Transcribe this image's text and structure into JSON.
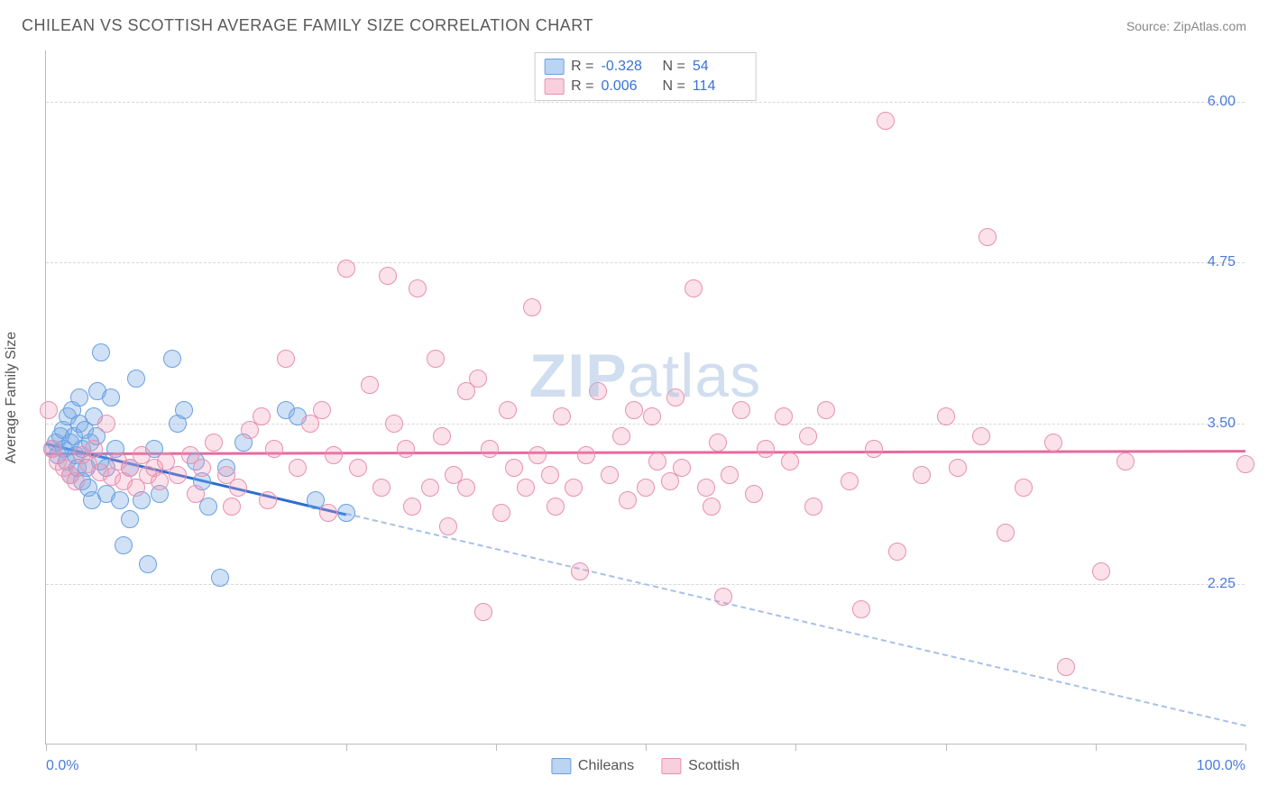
{
  "header": {
    "title": "CHILEAN VS SCOTTISH AVERAGE FAMILY SIZE CORRELATION CHART",
    "source": "Source: ZipAtlas.com"
  },
  "watermark": {
    "zip": "ZIP",
    "atlas": "atlas"
  },
  "chart": {
    "type": "scatter",
    "y_axis_title": "Average Family Size",
    "xlim": [
      0,
      100
    ],
    "ylim": [
      1.0,
      6.4
    ],
    "y_ticks": [
      2.25,
      3.5,
      4.75,
      6.0
    ],
    "y_tick_labels": [
      "2.25",
      "3.50",
      "4.75",
      "6.00"
    ],
    "x_ticks": [
      0,
      12.5,
      25,
      37.5,
      50,
      62.5,
      75,
      87.5,
      100
    ],
    "x_label_min": "0.0%",
    "x_label_max": "100.0%",
    "grid_color": "#d8d8d8",
    "background_color": "#ffffff",
    "axis_color": "#bbbbbb",
    "tick_label_color": "#4a7bd8",
    "marker_radius": 10,
    "series": [
      {
        "name": "Chileans",
        "color_fill": "rgba(120,170,230,0.35)",
        "color_stroke": "#6aa0e0",
        "trend_color": "#2b6cd4",
        "trend_dash_color": "#a8c0e8",
        "trend": {
          "x1": 0,
          "y1": 3.35,
          "x2_solid": 25,
          "y2_solid": 2.8,
          "x2_dash": 100,
          "y2_dash": 1.15
        },
        "R": "-0.328",
        "N": "54",
        "points": [
          [
            0.5,
            3.3
          ],
          [
            0.8,
            3.35
          ],
          [
            1.0,
            3.25
          ],
          [
            1.2,
            3.4
          ],
          [
            1.4,
            3.45
          ],
          [
            1.5,
            3.3
          ],
          [
            1.7,
            3.2
          ],
          [
            1.8,
            3.55
          ],
          [
            2.0,
            3.35
          ],
          [
            2.0,
            3.1
          ],
          [
            2.2,
            3.6
          ],
          [
            2.3,
            3.4
          ],
          [
            2.5,
            3.25
          ],
          [
            2.6,
            3.15
          ],
          [
            2.8,
            3.5
          ],
          [
            2.8,
            3.7
          ],
          [
            3.0,
            3.3
          ],
          [
            3.0,
            3.05
          ],
          [
            3.2,
            3.45
          ],
          [
            3.4,
            3.15
          ],
          [
            3.5,
            3.0
          ],
          [
            3.7,
            3.35
          ],
          [
            3.8,
            2.9
          ],
          [
            4.0,
            3.55
          ],
          [
            4.2,
            3.4
          ],
          [
            4.3,
            3.75
          ],
          [
            4.5,
            3.2
          ],
          [
            4.6,
            4.05
          ],
          [
            5.0,
            3.15
          ],
          [
            5.0,
            2.95
          ],
          [
            5.4,
            3.7
          ],
          [
            5.8,
            3.3
          ],
          [
            6.2,
            2.9
          ],
          [
            6.5,
            2.55
          ],
          [
            7.0,
            3.15
          ],
          [
            7.0,
            2.75
          ],
          [
            7.5,
            3.85
          ],
          [
            8.0,
            2.9
          ],
          [
            8.5,
            2.4
          ],
          [
            9.0,
            3.3
          ],
          [
            9.5,
            2.95
          ],
          [
            10.5,
            4.0
          ],
          [
            11.0,
            3.5
          ],
          [
            11.5,
            3.6
          ],
          [
            12.5,
            3.2
          ],
          [
            13.0,
            3.05
          ],
          [
            13.5,
            2.85
          ],
          [
            14.5,
            2.3
          ],
          [
            15.0,
            3.15
          ],
          [
            16.5,
            3.35
          ],
          [
            20.0,
            3.6
          ],
          [
            21.0,
            3.55
          ],
          [
            22.5,
            2.9
          ],
          [
            25.0,
            2.8
          ]
        ]
      },
      {
        "name": "Scottish",
        "color_fill": "rgba(240,150,180,0.28)",
        "color_stroke": "#e890b0",
        "trend_color": "#e76aa0",
        "trend": {
          "x1": 0,
          "y1": 3.27,
          "x2_solid": 100,
          "y2_solid": 3.29
        },
        "R": "0.006",
        "N": "114",
        "points": [
          [
            0.2,
            3.6
          ],
          [
            0.5,
            3.3
          ],
          [
            1.0,
            3.2
          ],
          [
            1.5,
            3.15
          ],
          [
            2.0,
            3.1
          ],
          [
            2.5,
            3.05
          ],
          [
            3.0,
            3.25
          ],
          [
            3.5,
            3.18
          ],
          [
            4.0,
            3.3
          ],
          [
            4.5,
            3.12
          ],
          [
            5.0,
            3.5
          ],
          [
            5.5,
            3.08
          ],
          [
            6.0,
            3.2
          ],
          [
            6.5,
            3.05
          ],
          [
            7.0,
            3.15
          ],
          [
            7.5,
            3.0
          ],
          [
            8.0,
            3.25
          ],
          [
            8.5,
            3.1
          ],
          [
            9.0,
            3.15
          ],
          [
            9.5,
            3.05
          ],
          [
            10.0,
            3.2
          ],
          [
            11.0,
            3.1
          ],
          [
            12.0,
            3.25
          ],
          [
            12.5,
            2.95
          ],
          [
            13.0,
            3.15
          ],
          [
            14.0,
            3.35
          ],
          [
            15.0,
            3.1
          ],
          [
            15.5,
            2.85
          ],
          [
            16.0,
            3.0
          ],
          [
            17.0,
            3.45
          ],
          [
            18.0,
            3.55
          ],
          [
            18.5,
            2.9
          ],
          [
            19.0,
            3.3
          ],
          [
            20.0,
            4.0
          ],
          [
            21.0,
            3.15
          ],
          [
            22.0,
            3.5
          ],
          [
            23.0,
            3.6
          ],
          [
            23.5,
            2.8
          ],
          [
            24.0,
            3.25
          ],
          [
            25.0,
            4.7
          ],
          [
            26.0,
            3.15
          ],
          [
            27.0,
            3.8
          ],
          [
            28.0,
            3.0
          ],
          [
            28.5,
            4.65
          ],
          [
            29.0,
            3.5
          ],
          [
            30.0,
            3.3
          ],
          [
            30.5,
            2.85
          ],
          [
            31.0,
            4.55
          ],
          [
            32.0,
            3.0
          ],
          [
            32.5,
            4.0
          ],
          [
            33.0,
            3.4
          ],
          [
            33.5,
            2.7
          ],
          [
            34.0,
            3.1
          ],
          [
            35.0,
            3.75
          ],
          [
            35.0,
            3.0
          ],
          [
            36.0,
            3.85
          ],
          [
            36.5,
            2.03
          ],
          [
            37.0,
            3.3
          ],
          [
            38.0,
            2.8
          ],
          [
            38.5,
            3.6
          ],
          [
            39.0,
            3.15
          ],
          [
            40.0,
            3.0
          ],
          [
            40.5,
            4.4
          ],
          [
            41.0,
            3.25
          ],
          [
            42.0,
            3.1
          ],
          [
            42.5,
            2.85
          ],
          [
            43.0,
            3.55
          ],
          [
            44.0,
            3.0
          ],
          [
            44.5,
            2.35
          ],
          [
            45.0,
            3.25
          ],
          [
            46.0,
            3.75
          ],
          [
            47.0,
            3.1
          ],
          [
            48.0,
            3.4
          ],
          [
            48.5,
            2.9
          ],
          [
            49.0,
            3.6
          ],
          [
            50.0,
            3.0
          ],
          [
            50.5,
            3.55
          ],
          [
            51.0,
            3.2
          ],
          [
            52.0,
            3.05
          ],
          [
            52.5,
            3.7
          ],
          [
            53.0,
            3.15
          ],
          [
            54.0,
            4.55
          ],
          [
            55.0,
            3.0
          ],
          [
            55.5,
            2.85
          ],
          [
            56.0,
            3.35
          ],
          [
            56.5,
            2.15
          ],
          [
            57.0,
            3.1
          ],
          [
            58.0,
            3.6
          ],
          [
            59.0,
            2.95
          ],
          [
            60.0,
            3.3
          ],
          [
            61.5,
            3.55
          ],
          [
            62.0,
            3.2
          ],
          [
            63.5,
            3.4
          ],
          [
            64.0,
            2.85
          ],
          [
            65.0,
            3.6
          ],
          [
            67.0,
            3.05
          ],
          [
            68.0,
            2.05
          ],
          [
            69.0,
            3.3
          ],
          [
            70.0,
            5.85
          ],
          [
            71.0,
            2.5
          ],
          [
            73.0,
            3.1
          ],
          [
            75.0,
            3.55
          ],
          [
            76.0,
            3.15
          ],
          [
            78.0,
            3.4
          ],
          [
            78.5,
            4.95
          ],
          [
            80.0,
            2.65
          ],
          [
            81.5,
            3.0
          ],
          [
            84.0,
            3.35
          ],
          [
            85.0,
            1.6
          ],
          [
            88.0,
            2.35
          ],
          [
            90.0,
            3.2
          ],
          [
            100.0,
            3.18
          ]
        ]
      }
    ]
  },
  "stats_box": {
    "rows": [
      {
        "swatch": "blue",
        "R_label": "R =",
        "R": "-0.328",
        "N_label": "N =",
        "N": "54"
      },
      {
        "swatch": "pink",
        "R_label": "R =",
        "R": "0.006",
        "N_label": "N =",
        "N": "114"
      }
    ]
  },
  "legend": {
    "items": [
      {
        "swatch": "blue",
        "label": "Chileans"
      },
      {
        "swatch": "pink",
        "label": "Scottish"
      }
    ]
  }
}
